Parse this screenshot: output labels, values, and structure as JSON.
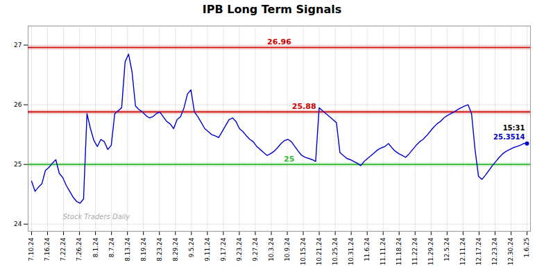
{
  "chart_data": {
    "type": "line",
    "title": "IPB Long Term Signals",
    "color": "#0000cc",
    "values": [
      24.72,
      24.55,
      24.62,
      24.68,
      24.9,
      24.95,
      25.02,
      25.08,
      24.85,
      24.78,
      24.65,
      24.55,
      24.45,
      24.38,
      24.35,
      24.42,
      25.85,
      25.6,
      25.4,
      25.3,
      25.42,
      25.38,
      25.25,
      25.32,
      25.85,
      25.9,
      25.95,
      26.72,
      26.85,
      26.55,
      25.98,
      25.92,
      25.88,
      25.82,
      25.78,
      25.8,
      25.85,
      25.88,
      25.8,
      25.72,
      25.68,
      25.6,
      25.75,
      25.8,
      25.95,
      26.18,
      26.25,
      25.88,
      25.8,
      25.7,
      25.6,
      25.55,
      25.5,
      25.48,
      25.45,
      25.55,
      25.65,
      25.75,
      25.78,
      25.72,
      25.6,
      25.55,
      25.48,
      25.42,
      25.38,
      25.3,
      25.25,
      25.2,
      25.15,
      25.18,
      25.22,
      25.28,
      25.35,
      25.4,
      25.42,
      25.38,
      25.3,
      25.22,
      25.15,
      25.12,
      25.1,
      25.08,
      25.05,
      25.95,
      25.9,
      25.85,
      25.8,
      25.75,
      25.7,
      25.2,
      25.15,
      25.1,
      25.08,
      25.05,
      25.02,
      24.98,
      25.05,
      25.1,
      25.15,
      25.2,
      25.25,
      25.28,
      25.3,
      25.35,
      25.28,
      25.22,
      25.18,
      25.15,
      25.12,
      25.18,
      25.25,
      25.32,
      25.38,
      25.42,
      25.48,
      25.55,
      25.62,
      25.68,
      25.72,
      25.78,
      25.82,
      25.85,
      25.88,
      25.92,
      25.95,
      25.98,
      26.0,
      25.85,
      25.25,
      24.8,
      24.75,
      24.82,
      24.9,
      24.98,
      25.05,
      25.12,
      25.18,
      25.22,
      25.25,
      25.28,
      25.3,
      25.32,
      25.35,
      25.3514
    ],
    "xlim": [
      -1,
      144
    ],
    "xticks": [
      {
        "value": 0,
        "label": "7.10.24"
      },
      {
        "value": 4.612903225806452,
        "label": "7.16.24"
      },
      {
        "value": 9.225806451612904,
        "label": "7.22.24"
      },
      {
        "value": 13.838709677419354,
        "label": "7.26.24"
      },
      {
        "value": 18.451612903225804,
        "label": "8.1.24"
      },
      {
        "value": 23.06451612903226,
        "label": "8.7.24"
      },
      {
        "value": 27.677419354838708,
        "label": "8.13.24"
      },
      {
        "value": 32.29032258064516,
        "label": "8.19.24"
      },
      {
        "value": 36.903225806451616,
        "label": "8.23.24"
      },
      {
        "value": 41.516129032258064,
        "label": "8.29.24"
      },
      {
        "value": 46.12903225806452,
        "label": "9.5.24"
      },
      {
        "value": 50.74193548387097,
        "label": "9.11.24"
      },
      {
        "value": 55.354838709677416,
        "label": "9.17.24"
      },
      {
        "value": 59.96774193548387,
        "label": "9.23.24"
      },
      {
        "value": 64.58064516129032,
        "label": "9.27.24"
      },
      {
        "value": 69.19354838709677,
        "label": "10.3.24"
      },
      {
        "value": 73.80645161290323,
        "label": "10.9.24"
      },
      {
        "value": 78.41935483870968,
        "label": "10.15.24"
      },
      {
        "value": 83.03225806451613,
        "label": "10.21.24"
      },
      {
        "value": 87.64516129032258,
        "label": "10.25.24"
      },
      {
        "value": 92.25806451612904,
        "label": "10.31.24"
      },
      {
        "value": 96.87096774193549,
        "label": "11.6.24"
      },
      {
        "value": 101.48387096774194,
        "label": "11.11.24"
      },
      {
        "value": 106.09677419354838,
        "label": "11.18.24"
      },
      {
        "value": 110.70967741935483,
        "label": "11.22.24"
      },
      {
        "value": 115.3225806451613,
        "label": "11.29.24"
      },
      {
        "value": 119.93548387096774,
        "label": "12.5.24"
      },
      {
        "value": 124.54838709677419,
        "label": "12.11.24"
      },
      {
        "value": 129.16129032258064,
        "label": "12.17.24"
      },
      {
        "value": 133.7741935483871,
        "label": "12.23.24"
      },
      {
        "value": 138.38709677419354,
        "label": "12.30.24"
      },
      {
        "value": 143,
        "label": "1.6.25"
      }
    ],
    "ylim": [
      23.88,
      27.32
    ],
    "yticks": [
      24,
      25,
      26,
      27
    ],
    "grid": true,
    "hlines": [
      {
        "value": 25.88,
        "label": "25.88",
        "color": "#cc0000"
      },
      {
        "value": 26.96,
        "label": "26.96",
        "color": "#cc0000"
      },
      {
        "value": 25.0,
        "label": "25",
        "color": "#33bb33"
      }
    ],
    "last_point": {
      "time_label": "15:31",
      "value_label": "25.3514",
      "color": "#0000cc"
    },
    "watermark": {
      "text": "Stock Traders Daily",
      "color": "#aaaaaa"
    }
  }
}
